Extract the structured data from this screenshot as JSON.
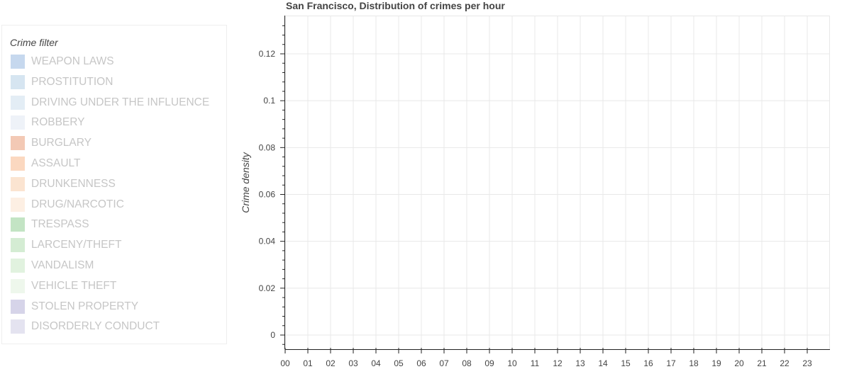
{
  "legend": {
    "title": "Crime filter",
    "items": [
      {
        "label": "WEAPON LAWS",
        "color": "#c6d8ee"
      },
      {
        "label": "PROSTITUTION",
        "color": "#d6e5f1"
      },
      {
        "label": "DRIVING UNDER THE INFLUENCE",
        "color": "#e3edf5"
      },
      {
        "label": "ROBBERY",
        "color": "#eef2f8"
      },
      {
        "label": "BURGLARY",
        "color": "#f3c9b5"
      },
      {
        "label": "ASSAULT",
        "color": "#fbd8c0"
      },
      {
        "label": "DRUNKENNESS",
        "color": "#fbe4d1"
      },
      {
        "label": "DRUG/NARCOTIC",
        "color": "#fdefe3"
      },
      {
        "label": "TRESPASS",
        "color": "#c3e4c4"
      },
      {
        "label": "LARCENY/THEFT",
        "color": "#d4ecd3"
      },
      {
        "label": "VANDALISM",
        "color": "#e1f2df"
      },
      {
        "label": "VEHICLE THEFT",
        "color": "#eef7ec"
      },
      {
        "label": "STOLEN PROPERTY",
        "color": "#d6d4e9"
      },
      {
        "label": "DISORDERLY CONDUCT",
        "color": "#e4e3f0"
      }
    ]
  },
  "chart_data": {
    "type": "line",
    "title": "San Francisco, Distribution of crimes per hour",
    "xlabel": "",
    "ylabel": "Crime density",
    "categories": [
      "00",
      "01",
      "02",
      "03",
      "04",
      "05",
      "06",
      "07",
      "08",
      "09",
      "10",
      "11",
      "12",
      "13",
      "14",
      "15",
      "16",
      "17",
      "18",
      "19",
      "20",
      "21",
      "22",
      "23"
    ],
    "series": [],
    "ylim": [
      -0.006,
      0.136
    ],
    "yticks": [
      "0",
      "0.02",
      "0.04",
      "0.06",
      "0.08",
      "0.1",
      "0.12"
    ],
    "ytick_values": [
      0,
      0.02,
      0.04,
      0.06,
      0.08,
      0.1,
      0.12
    ],
    "grid": true,
    "legend_position": "left"
  }
}
